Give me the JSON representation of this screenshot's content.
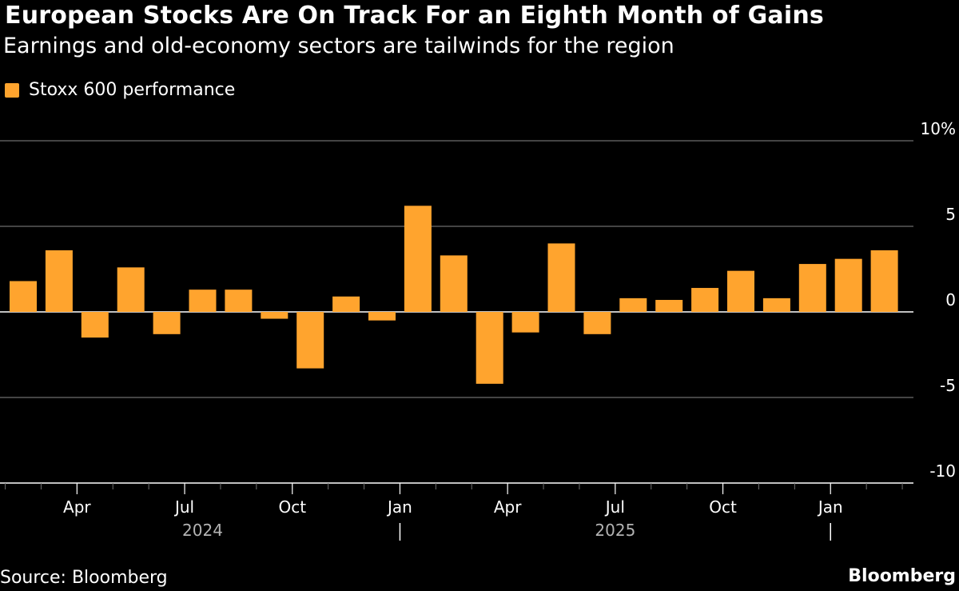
{
  "header": {
    "title": "European Stocks Are On Track For an Eighth Month of Gains",
    "subtitle": "Earnings and old-economy sectors are tailwinds for the region"
  },
  "legend": {
    "label": "Stoxx 600 performance"
  },
  "footer": {
    "source": "Source: Bloomberg",
    "brand": "Bloomberg"
  },
  "colors": {
    "bar": "#FFA42E",
    "grid": "#6e6e6e",
    "axis": "#ffffff",
    "background": "#000000"
  },
  "chart_data": {
    "type": "bar",
    "title": "European Stocks Are On Track For an Eighth Month of Gains",
    "subtitle": "Earnings and old-economy sectors are tailwinds for the region",
    "xlabel": "",
    "ylabel": "",
    "ylim": [
      -10,
      10
    ],
    "y_ticks": [
      10,
      5,
      0,
      -5,
      -10
    ],
    "y_tick_labels": [
      "10%",
      "5",
      "0",
      "-5",
      "-10"
    ],
    "grid": true,
    "legend_position": "top-left",
    "categories": [
      "Feb 2024",
      "Mar 2024",
      "Apr 2024",
      "May 2024",
      "Jun 2024",
      "Jul 2024",
      "Aug 2024",
      "Sep 2024",
      "Oct 2024",
      "Nov 2024",
      "Dec 2024",
      "Jan 2025",
      "Feb 2025",
      "Mar 2025",
      "Apr 2025",
      "May 2025",
      "Jun 2025",
      "Jul 2025",
      "Aug 2025",
      "Sep 2025",
      "Oct 2025",
      "Nov 2025",
      "Dec 2025",
      "Jan 2026",
      "Feb 2026"
    ],
    "series": [
      {
        "name": "Stoxx 600 performance",
        "values": [
          1.8,
          3.6,
          -1.5,
          2.6,
          -1.3,
          1.3,
          1.3,
          -0.4,
          -3.3,
          0.9,
          -0.5,
          6.2,
          3.3,
          -4.2,
          -1.2,
          4.0,
          -1.3,
          0.8,
          0.7,
          1.4,
          2.4,
          0.8,
          2.8,
          3.1,
          3.6
        ]
      }
    ],
    "x_tick_labels": [
      {
        "index": 2,
        "label": "Apr"
      },
      {
        "index": 5,
        "label": "Jul"
      },
      {
        "index": 8,
        "label": "Oct"
      },
      {
        "index": 11,
        "label": "Jan"
      },
      {
        "index": 14,
        "label": "Apr"
      },
      {
        "index": 17,
        "label": "Jul"
      },
      {
        "index": 20,
        "label": "Oct"
      },
      {
        "index": 23,
        "label": "Jan"
      }
    ],
    "year_labels": [
      {
        "label": "2024",
        "from_index": 0,
        "to_index": 11
      },
      {
        "label": "2025",
        "from_index": 11,
        "to_index": 23
      }
    ],
    "year_dividers": [
      11,
      23
    ]
  }
}
